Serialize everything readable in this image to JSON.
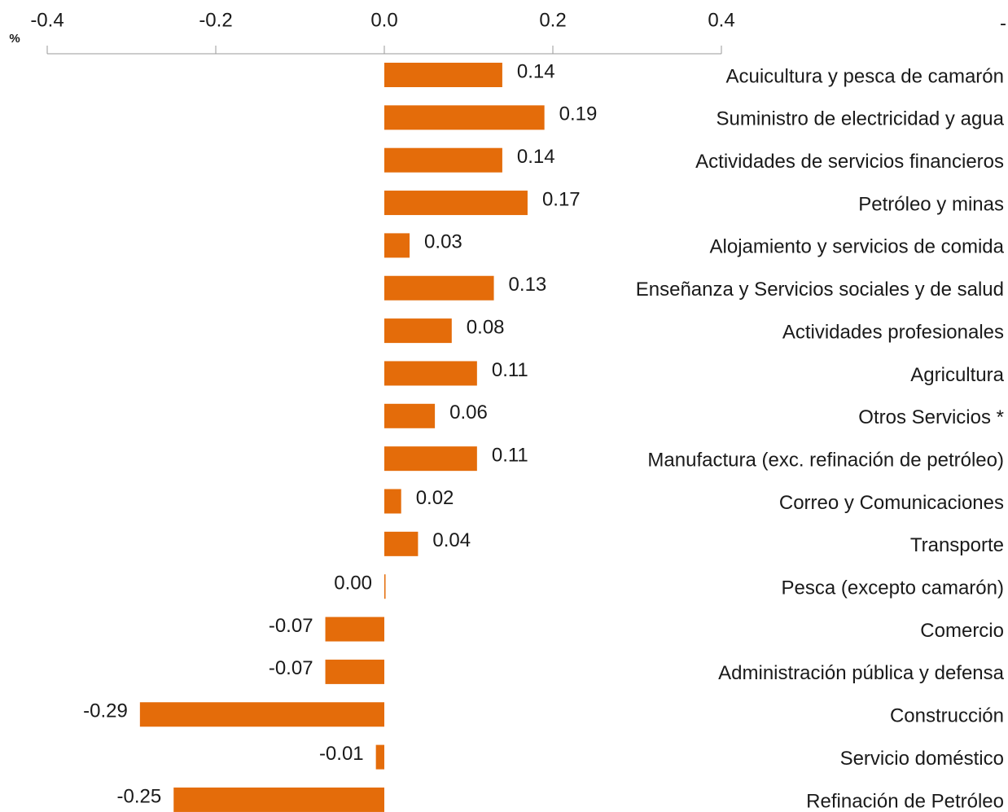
{
  "chart_data": {
    "type": "bar",
    "orientation": "horizontal",
    "axis_label": "%",
    "annotation": "-",
    "categories": [
      "Acuicultura y pesca de camarón",
      "Suministro de electricidad y agua",
      "Actividades de servicios financieros",
      "Petróleo y minas",
      "Alojamiento y servicios de comida",
      "Enseñanza  y Servicios sociales y de salud",
      "Actividades profesionales",
      "Agricultura",
      "Otros Servicios *",
      "Manufactura (exc. refinación de petróleo)",
      "Correo y Comunicaciones",
      "Transporte",
      "Pesca (excepto camarón)",
      "Comercio",
      "Administración pública y defensa",
      "Construcción",
      "Servicio doméstico",
      "Refinación de Petróleo"
    ],
    "values": [
      0.14,
      0.19,
      0.14,
      0.17,
      0.03,
      0.13,
      0.08,
      0.11,
      0.06,
      0.11,
      0.02,
      0.04,
      0.0,
      -0.07,
      -0.07,
      -0.29,
      -0.01,
      -0.25
    ],
    "value_labels": [
      "0.14",
      "0.19",
      "0.14",
      "0.17",
      "0.03",
      "0.13",
      "0.08",
      "0.11",
      "0.06",
      "0.11",
      "0.02",
      "0.04",
      "0.00",
      "-0.07",
      "-0.07",
      "-0.29",
      "-0.01",
      "-0.25"
    ],
    "color": "#e46c0a",
    "xlim": [
      -0.4,
      0.4
    ],
    "xticks": [
      -0.4,
      -0.2,
      {
        "value": 0,
        "label": "0.0"
      },
      0.2,
      0.4
    ]
  }
}
